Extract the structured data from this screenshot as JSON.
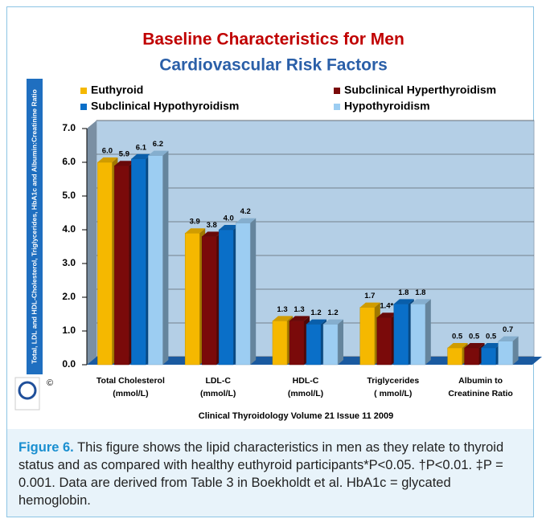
{
  "chart_data": {
    "type": "bar3d",
    "title": "Baseline Characteristics for Men",
    "subtitle": "Cardiovascular Risk Factors",
    "y_label": "Total, LDL and HDL-Cholesterol, Triglycerides, HbA1c and Albumin:Creatinine Ratio",
    "source": "Clinical Thyroidology Volume 21 Issue 11 2009",
    "categories": [
      "Total Cholesterol\n(mmol/L)",
      "LDL-C\n(mmol/L)",
      "HDL-C\n(mmol/L)",
      "Triglycerides\n( mmol/L)",
      "Albumin to\nCreatinine Ratio"
    ],
    "series": [
      {
        "name": "Euthyroid",
        "color": "#f5b800",
        "values": [
          6.0,
          3.9,
          1.3,
          1.7,
          0.5
        ],
        "value_labels": [
          "6.0",
          "3.9",
          "1.3",
          "1.7",
          "0.5"
        ]
      },
      {
        "name": "Subclinical Hyperthyroidism",
        "color": "#7a0a0a",
        "values": [
          5.9,
          3.8,
          1.3,
          1.4,
          0.5
        ],
        "value_labels": [
          "5.9",
          "3.8",
          "1.3",
          "1.4*",
          "0.5"
        ]
      },
      {
        "name": "Subclinical Hypothyroidism",
        "color": "#0a6fc8",
        "values": [
          6.1,
          4.0,
          1.2,
          1.8,
          0.5
        ],
        "value_labels": [
          "6.1",
          "4.0",
          "1.2",
          "1.8",
          "0.5"
        ]
      },
      {
        "name": "Hypothyroidism",
        "color": "#9ccdf2",
        "values": [
          6.2,
          4.2,
          1.2,
          1.8,
          0.7
        ],
        "value_labels": [
          "6.2",
          "4.2",
          "1.2",
          "1.8",
          "0.7"
        ]
      }
    ],
    "ylim": [
      0,
      7
    ],
    "yticks": [
      {
        "value": 0,
        "label": "0.0"
      },
      {
        "value": 1,
        "label": "1.0"
      },
      {
        "value": 2,
        "label": "2.0"
      },
      {
        "value": 3,
        "label": "3.0"
      },
      {
        "value": 4,
        "label": "4.0"
      },
      {
        "value": 5,
        "label": "5.0"
      },
      {
        "value": 6,
        "label": "6.0"
      },
      {
        "value": 7,
        "label": "7.0"
      }
    ],
    "grid": true
  },
  "caption": {
    "label": "Figure 6.",
    "text": "This figure shows the lipid characteristics in men as they relate to thyroid status and as compared with healthy euthyroid participants*P<0.05. †P<0.01. ‡P = 0.001. Data are derived from Table 3 in Boekholdt et al. HbA1c = glycated hemoglobin."
  }
}
